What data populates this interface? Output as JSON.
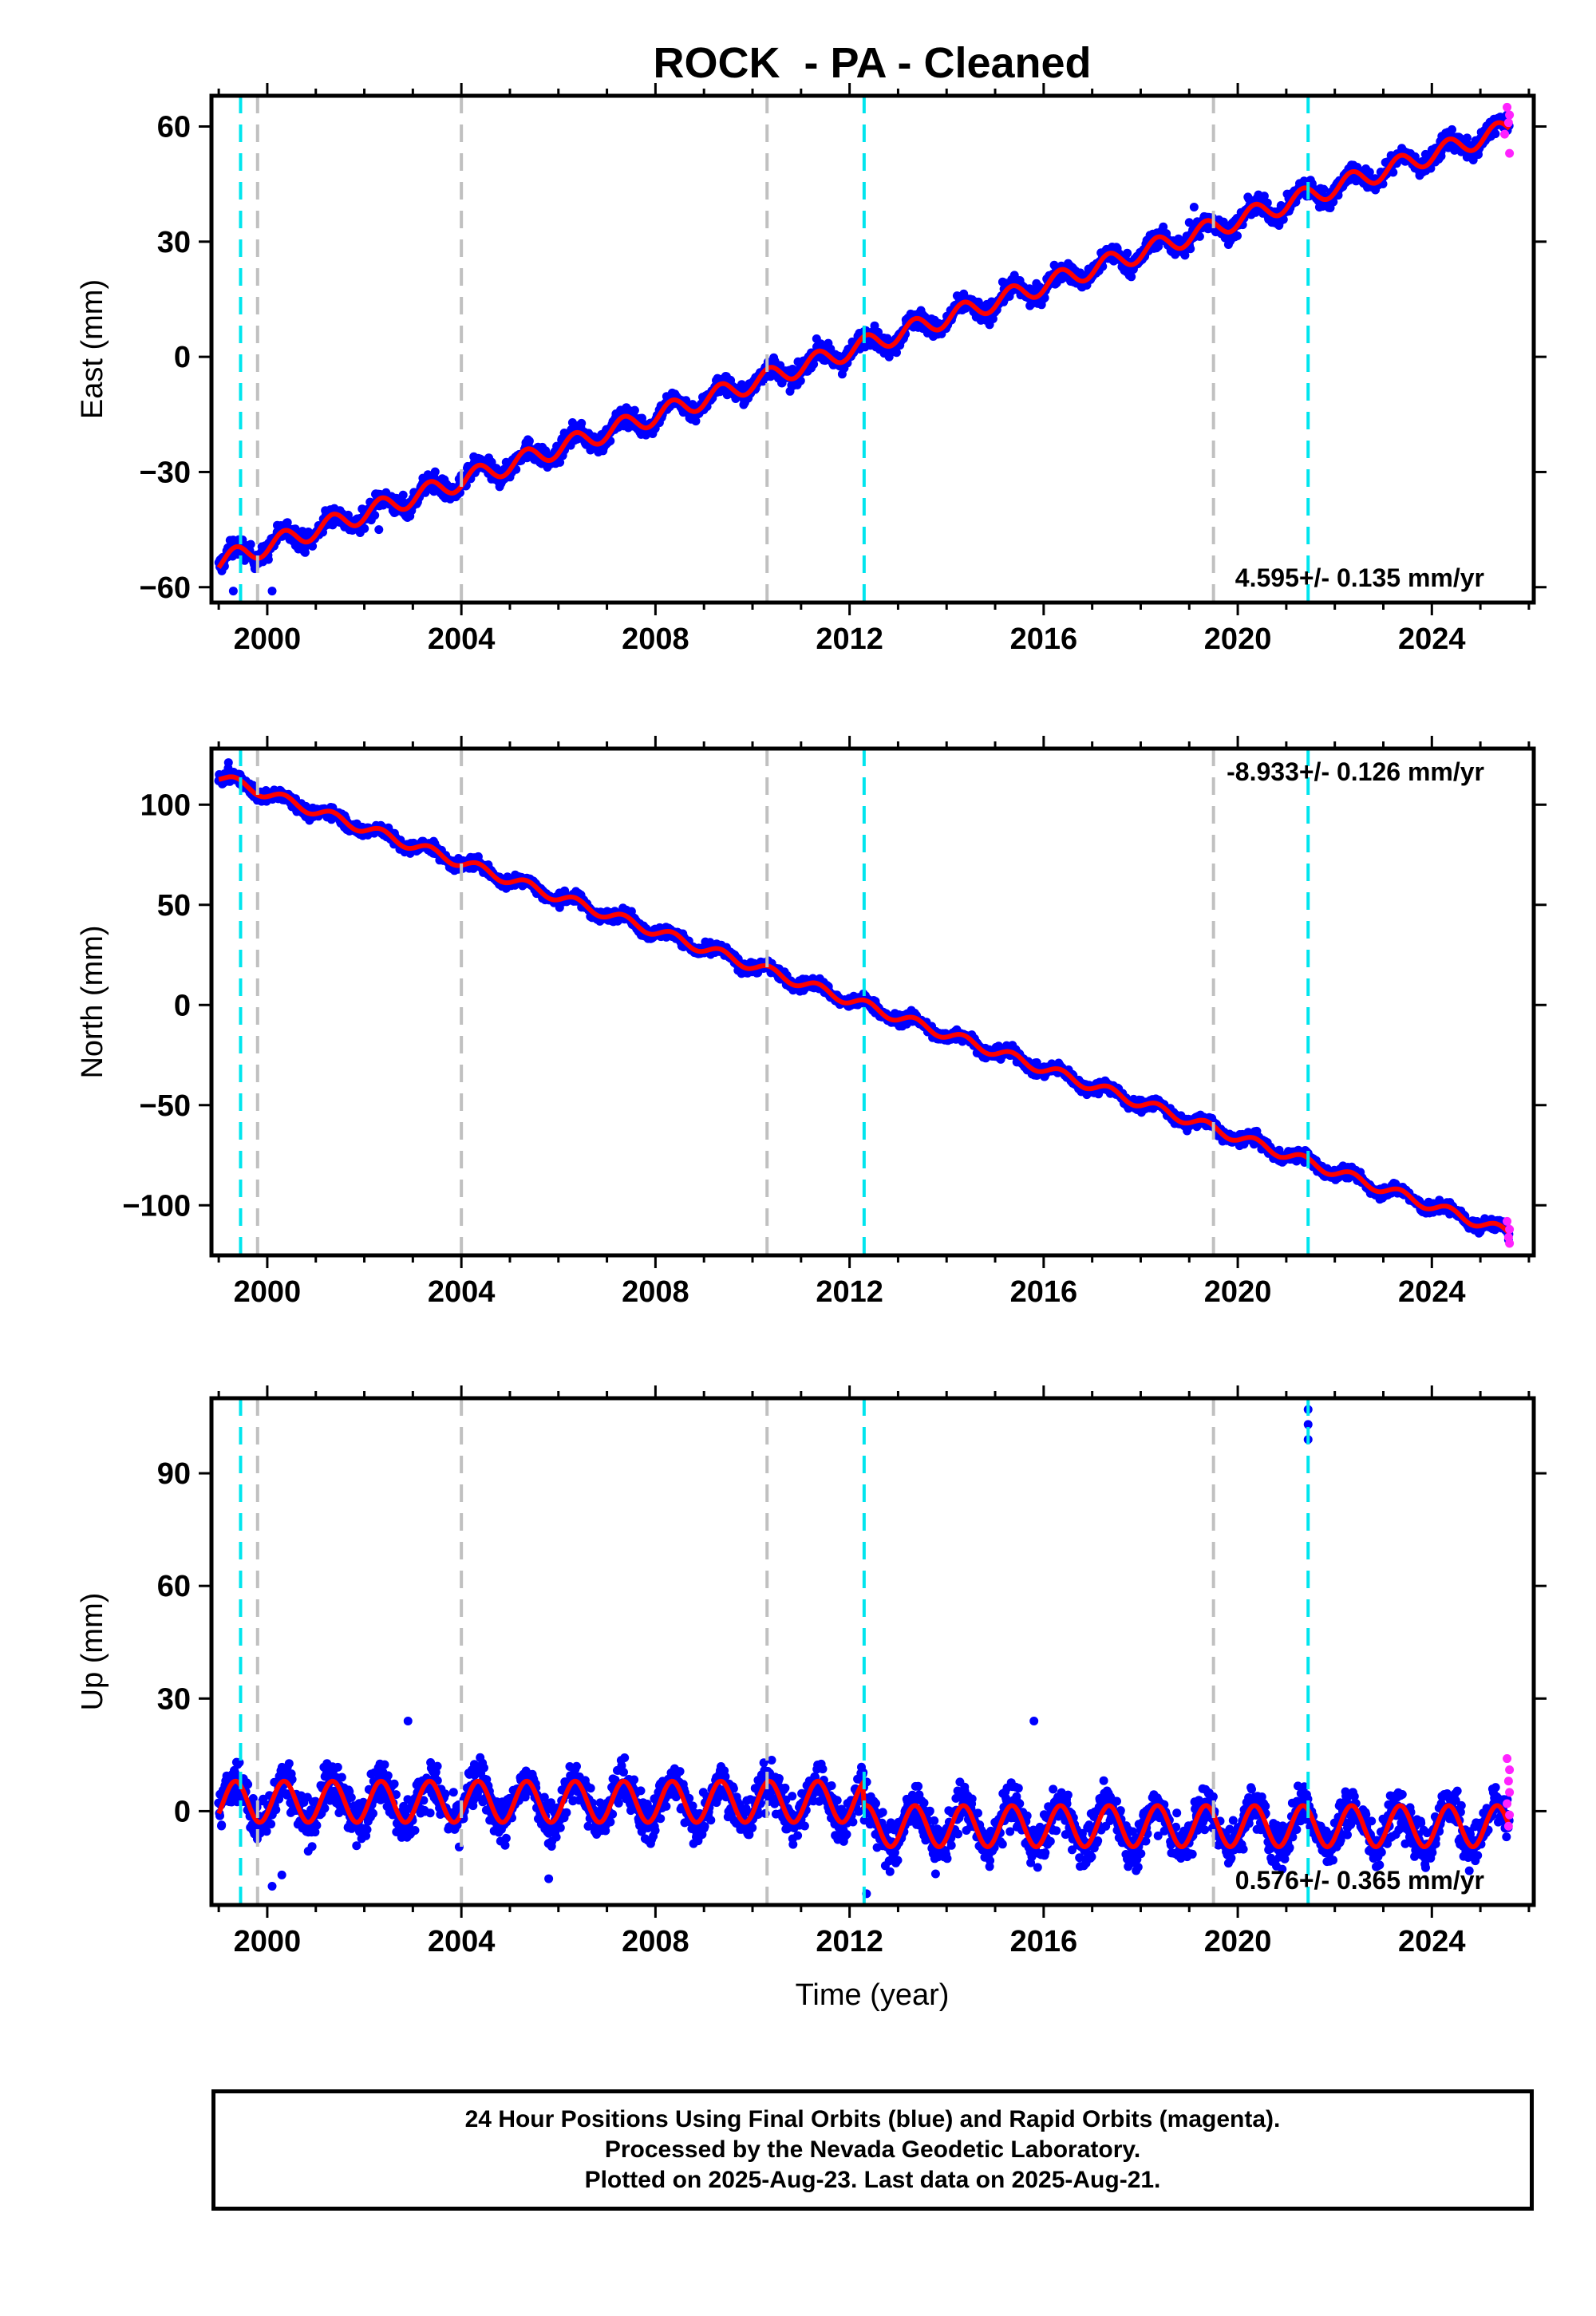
{
  "title": "ROCK  - PA - Cleaned",
  "xlabel": "Time (year)",
  "footer": {
    "line1": "24 Hour Positions Using Final Orbits (blue) and Rapid Orbits (magenta).",
    "line2": "Processed by the Nevada Geodetic Laboratory.",
    "line3": "Plotted on 2025-Aug-23. Last data on 2025-Aug-21."
  },
  "colors": {
    "final_orbits": "#0000ff",
    "rapid_orbits": "#ff22ff",
    "model": "#ff0000",
    "equipment_change": "#00e5ee",
    "other_event": "#c0c0c0"
  },
  "chart_data": [
    {
      "type": "scatter",
      "name": "east",
      "ylabel": "East (mm)",
      "xlim": [
        1998.85,
        2026.1
      ],
      "ylim": [
        -64,
        68
      ],
      "xticks": [
        2000,
        2004,
        2008,
        2012,
        2016,
        2020,
        2024
      ],
      "yticks": [
        -60,
        -30,
        0,
        30,
        60
      ],
      "ytick_labels": [
        "−60",
        "−30",
        "0",
        "30",
        "60"
      ],
      "rate_label": "4.595+/- 0.135 mm/yr",
      "rate_position": "bottom-right",
      "grid": false,
      "trend": {
        "start_year": 1999.0,
        "start_value": -53.5,
        "end_year": 2025.6,
        "end_value": 59.5
      },
      "seasonal_amplitude": 2.5,
      "noise_amplitude": 2.5,
      "anomalies": [
        {
          "x": 2002.3,
          "y": -45
        },
        {
          "x": 2002.8,
          "y": -36
        },
        {
          "x": 2003.4,
          "y": -33
        },
        {
          "x": 2019.1,
          "y": 39
        },
        {
          "x": 2019.0,
          "y": 35
        },
        {
          "x": 1999.3,
          "y": -61
        },
        {
          "x": 2000.1,
          "y": -61
        }
      ],
      "rapid_points": [
        {
          "x": 2025.55,
          "y": 65
        },
        {
          "x": 2025.6,
          "y": 63
        },
        {
          "x": 2025.58,
          "y": 61
        },
        {
          "x": 2025.6,
          "y": 53
        },
        {
          "x": 2025.5,
          "y": 58
        }
      ],
      "events_cyan": [
        1999.45,
        2012.3,
        2021.45
      ],
      "events_gray": [
        1999.8,
        2004.0,
        2010.3,
        2019.5
      ]
    },
    {
      "type": "scatter",
      "name": "north",
      "ylabel": "North (mm)",
      "xlim": [
        1998.85,
        2026.1
      ],
      "ylim": [
        -125,
        128
      ],
      "xticks": [
        2000,
        2004,
        2008,
        2012,
        2016,
        2020,
        2024
      ],
      "yticks": [
        -100,
        -50,
        0,
        50,
        100
      ],
      "ytick_labels": [
        "−100",
        "−50",
        "0",
        "50",
        "100"
      ],
      "rate_label": "-8.933+/- 0.126 mm/yr",
      "rate_position": "top-right",
      "grid": false,
      "trend": {
        "start_year": 1999.0,
        "start_value": 114,
        "end_year": 2025.6,
        "end_value": -114
      },
      "seasonal_amplitude": 2.5,
      "noise_amplitude": 3,
      "anomalies": [
        {
          "x": 1999.2,
          "y": 121
        },
        {
          "x": 2021.45,
          "y": -74
        }
      ],
      "rapid_points": [
        {
          "x": 2025.55,
          "y": -108
        },
        {
          "x": 2025.6,
          "y": -112
        },
        {
          "x": 2025.58,
          "y": -116
        },
        {
          "x": 2025.6,
          "y": -119
        }
      ],
      "events_cyan": [
        1999.45,
        2012.3,
        2021.45
      ],
      "events_gray": [
        1999.8,
        2004.0,
        2010.3,
        2019.5
      ]
    },
    {
      "type": "scatter",
      "name": "up",
      "ylabel": "Up (mm)",
      "xlim": [
        1998.85,
        2026.1
      ],
      "ylim": [
        -25,
        110
      ],
      "xticks": [
        2000,
        2004,
        2008,
        2012,
        2016,
        2020,
        2024
      ],
      "yticks": [
        0,
        30,
        60,
        90
      ],
      "ytick_labels": [
        "0",
        "30",
        "60",
        "90"
      ],
      "rate_label": "0.576+/- 0.365 mm/yr",
      "rate_position": "bottom-right",
      "grid": false,
      "segments": [
        {
          "start": 1999.0,
          "end": 2012.3,
          "offset": 2.5
        },
        {
          "start": 2012.3,
          "end": 2025.6,
          "offset": -4
        }
      ],
      "seasonal_amplitude": 5.5,
      "noise_amplitude": 6,
      "anomalies": [
        {
          "x": 2021.45,
          "y": 107
        },
        {
          "x": 2021.45,
          "y": 103
        },
        {
          "x": 2021.45,
          "y": 99
        },
        {
          "x": 2015.8,
          "y": 24
        },
        {
          "x": 2002.9,
          "y": 24
        },
        {
          "x": 2000.1,
          "y": -20
        },
        {
          "x": 2000.3,
          "y": -17
        },
        {
          "x": 2012.35,
          "y": -22
        },
        {
          "x": 2005.8,
          "y": -18
        }
      ],
      "rapid_points": [
        {
          "x": 2025.55,
          "y": 14
        },
        {
          "x": 2025.6,
          "y": 11
        },
        {
          "x": 2025.58,
          "y": 8
        },
        {
          "x": 2025.6,
          "y": 5
        },
        {
          "x": 2025.55,
          "y": 2
        },
        {
          "x": 2025.6,
          "y": -1
        },
        {
          "x": 2025.58,
          "y": -4
        }
      ],
      "events_cyan": [
        1999.45,
        2012.3,
        2021.45
      ],
      "events_gray": [
        1999.8,
        2004.0,
        2010.3,
        2019.5
      ]
    }
  ]
}
